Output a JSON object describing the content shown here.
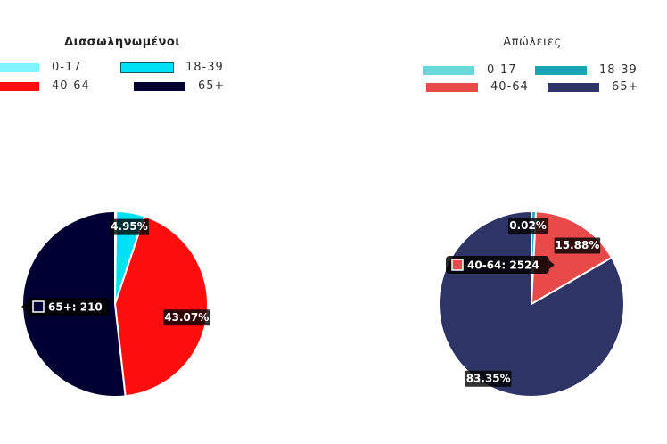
{
  "chart_data": [
    {
      "type": "pie",
      "title": "Διασωληνωμένοι",
      "legend_position": "top",
      "categories": [
        "0-17",
        "18-39",
        "40-64",
        "65+"
      ],
      "colors": [
        "#80f4fb",
        "#00e1f5",
        "#ff0e0e",
        "#000033"
      ],
      "slice_border": "#ffffff",
      "values_percent": [
        0.2,
        4.95,
        43.07,
        51.78
      ],
      "labels": [
        {
          "text": "4.95%",
          "slice": 1
        },
        {
          "text": "43.07%",
          "slice": 2
        }
      ],
      "tooltip": {
        "category": "65+",
        "value": 210,
        "text": "65+: 210"
      }
    },
    {
      "type": "pie",
      "title": "Απώλειες",
      "legend_position": "top",
      "categories": [
        "0-17",
        "18-39",
        "40-64",
        "65+"
      ],
      "colors": [
        "#66d9d9",
        "#1aa5b2",
        "#e84a4a",
        "#2e3466"
      ],
      "slice_border": "#ffffff",
      "values_percent": [
        0.02,
        0.75,
        15.88,
        83.35
      ],
      "labels": [
        {
          "text": "0.02%",
          "slice": 0
        },
        {
          "text": "15.88%",
          "slice": 2
        },
        {
          "text": "83.35%",
          "slice": 3
        }
      ],
      "tooltip": {
        "category": "40-64",
        "value": 2524,
        "text": "40-64: 2524"
      }
    }
  ]
}
